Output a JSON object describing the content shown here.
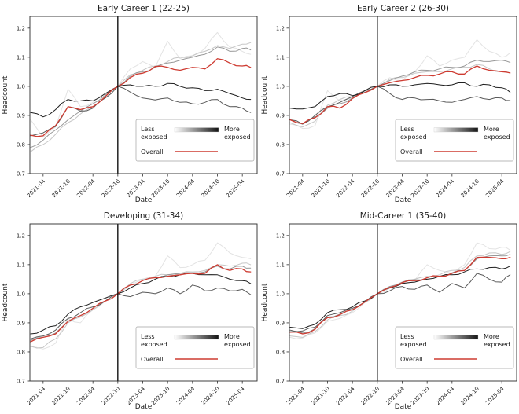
{
  "figure": {
    "background": "#ffffff",
    "event_line_color": "#000000",
    "spine_color": "#2b2b2b",
    "text_color": "#1a1a1a"
  },
  "legend": {
    "less_line1": "Less",
    "less_line2": "exposed",
    "more_line1": "More",
    "more_line2": "exposed",
    "overall_label": "Overall",
    "overall_color": "#ce3b31",
    "gradient_from": "#ffffff",
    "gradient_to": "#141414",
    "border_color": "#b8b8b8"
  },
  "chart_data": [
    {
      "type": "line",
      "title": "Early Career 1 (22-25)",
      "xlabel": "Date",
      "ylabel": "Headcount",
      "ylim": [
        0.7,
        1.24
      ],
      "yticks": [
        "0.7",
        "0.8",
        "0.9",
        "1.0",
        "1.1",
        "1.2"
      ],
      "xticks": [
        "2021-04",
        "2021-10",
        "2022-04",
        "2022-10",
        "2023-04",
        "2023-10",
        "2024-04",
        "2024-10",
        "2025-04"
      ],
      "x_start": "2021-01",
      "x_end": "2025-07",
      "event_line_x": "2022-10",
      "anchor_months": [
        "2021-01",
        "2021-04",
        "2021-07",
        "2021-10",
        "2022-01",
        "2022-04",
        "2022-07",
        "2022-10",
        "2023-01",
        "2023-04",
        "2023-07",
        "2023-10",
        "2024-01",
        "2024-04",
        "2024-07",
        "2024-10",
        "2025-01",
        "2025-04",
        "2025-06"
      ],
      "series": [
        {
          "id": "q1-least-exposed",
          "color": "#e3e3e3",
          "values": [
            0.885,
            0.825,
            0.86,
            0.99,
            0.93,
            0.945,
            0.975,
            1.0,
            1.06,
            1.085,
            1.065,
            1.155,
            1.095,
            1.105,
            1.13,
            1.185,
            1.135,
            1.12,
            1.11
          ]
        },
        {
          "id": "q2",
          "color": "#c6c6c6",
          "values": [
            0.775,
            0.8,
            0.835,
            0.875,
            0.905,
            0.93,
            0.965,
            1.0,
            1.04,
            1.055,
            1.07,
            1.085,
            1.1,
            1.105,
            1.12,
            1.14,
            1.13,
            1.145,
            1.15
          ]
        },
        {
          "id": "q3",
          "color": "#989898",
          "values": [
            0.79,
            0.815,
            0.85,
            0.885,
            0.915,
            0.94,
            0.97,
            1.0,
            1.035,
            1.05,
            1.065,
            1.08,
            1.09,
            1.1,
            1.11,
            1.135,
            1.12,
            1.13,
            1.125
          ]
        },
        {
          "id": "q4",
          "color": "#5a5a5a",
          "values": [
            0.83,
            0.84,
            0.862,
            0.93,
            0.915,
            0.925,
            0.96,
            1.0,
            0.98,
            0.96,
            0.953,
            0.96,
            0.945,
            0.94,
            0.945,
            0.955,
            0.93,
            0.925,
            0.91
          ]
        },
        {
          "id": "q5-most-exposed",
          "color": "#1f1f1f",
          "values": [
            0.91,
            0.895,
            0.92,
            0.955,
            0.95,
            0.95,
            0.975,
            1.0,
            1.005,
            1.0,
            1.0,
            1.01,
            1.0,
            0.995,
            0.985,
            0.99,
            0.975,
            0.96,
            0.955
          ]
        },
        {
          "id": "overall",
          "color": "#ce3b31",
          "values": [
            0.832,
            0.83,
            0.865,
            0.93,
            0.92,
            0.93,
            0.965,
            1.0,
            1.03,
            1.045,
            1.068,
            1.065,
            1.055,
            1.065,
            1.06,
            1.095,
            1.08,
            1.07,
            1.065
          ]
        }
      ]
    },
    {
      "type": "line",
      "title": "Early Career 2 (26-30)",
      "xlabel": "Date",
      "ylabel": "Headcount",
      "ylim": [
        0.7,
        1.24
      ],
      "yticks": [
        "0.7",
        "0.8",
        "0.9",
        "1.0",
        "1.1",
        "1.2"
      ],
      "xticks": [
        "2021-04",
        "2021-10",
        "2022-04",
        "2022-10",
        "2023-04",
        "2023-10",
        "2024-04",
        "2024-10",
        "2025-04"
      ],
      "x_start": "2021-01",
      "x_end": "2025-07",
      "event_line_x": "2022-10",
      "anchor_months": [
        "2021-01",
        "2021-04",
        "2021-07",
        "2021-10",
        "2022-01",
        "2022-04",
        "2022-07",
        "2022-10",
        "2023-01",
        "2023-04",
        "2023-07",
        "2023-10",
        "2024-01",
        "2024-04",
        "2024-07",
        "2024-10",
        "2025-01",
        "2025-04",
        "2025-06"
      ],
      "series": [
        {
          "id": "q1-least-exposed",
          "color": "#e3e3e3",
          "values": [
            0.87,
            0.855,
            0.865,
            0.985,
            0.95,
            0.96,
            0.985,
            1.0,
            1.03,
            1.02,
            1.05,
            1.105,
            1.07,
            1.09,
            1.1,
            1.16,
            1.12,
            1.1,
            1.115
          ]
        },
        {
          "id": "q2",
          "color": "#c6c6c6",
          "values": [
            0.875,
            0.86,
            0.88,
            0.935,
            0.955,
            0.965,
            0.985,
            1.0,
            1.025,
            1.03,
            1.045,
            1.05,
            1.05,
            1.06,
            1.065,
            1.075,
            1.06,
            1.05,
            1.045
          ]
        },
        {
          "id": "q3",
          "color": "#989898",
          "values": [
            0.885,
            0.87,
            0.895,
            0.925,
            0.94,
            0.96,
            0.98,
            1.0,
            1.02,
            1.035,
            1.05,
            1.055,
            1.06,
            1.065,
            1.07,
            1.09,
            1.085,
            1.09,
            1.082
          ]
        },
        {
          "id": "q4",
          "color": "#5a5a5a",
          "values": [
            0.885,
            0.87,
            0.9,
            0.93,
            0.945,
            0.965,
            0.985,
            1.0,
            0.975,
            0.955,
            0.96,
            0.955,
            0.95,
            0.945,
            0.955,
            0.965,
            0.955,
            0.96,
            0.951
          ]
        },
        {
          "id": "q5-most-exposed",
          "color": "#1f1f1f",
          "values": [
            0.925,
            0.922,
            0.93,
            0.965,
            0.975,
            0.968,
            0.985,
            1.0,
            1.005,
            1.0,
            1.005,
            1.01,
            1.005,
            1.005,
            1.012,
            1.0,
            1.005,
            0.995,
            0.98
          ]
        },
        {
          "id": "overall",
          "color": "#ce3b31",
          "values": [
            0.885,
            0.872,
            0.892,
            0.93,
            0.925,
            0.958,
            0.978,
            1.0,
            1.012,
            1.02,
            1.03,
            1.038,
            1.042,
            1.05,
            1.042,
            1.07,
            1.055,
            1.05,
            1.046
          ]
        }
      ]
    },
    {
      "type": "line",
      "title": "Developing (31-34)",
      "xlabel": "Date",
      "ylabel": "Headcount",
      "ylim": [
        0.7,
        1.24
      ],
      "yticks": [
        "0.7",
        "0.8",
        "0.9",
        "1.0",
        "1.1",
        "1.2"
      ],
      "xticks": [
        "2021-04",
        "2021-10",
        "2022-04",
        "2022-10",
        "2023-04",
        "2023-10",
        "2024-04",
        "2024-10",
        "2025-04"
      ],
      "x_start": "2021-01",
      "x_end": "2025-07",
      "event_line_x": "2022-10",
      "anchor_months": [
        "2021-01",
        "2021-04",
        "2021-07",
        "2021-10",
        "2022-01",
        "2022-04",
        "2022-07",
        "2022-10",
        "2023-01",
        "2023-04",
        "2023-07",
        "2023-10",
        "2024-01",
        "2024-04",
        "2024-07",
        "2024-10",
        "2025-01",
        "2025-04",
        "2025-06"
      ],
      "series": [
        {
          "id": "q1-least-exposed",
          "color": "#e3e3e3",
          "values": [
            0.818,
            0.81,
            0.83,
            0.915,
            0.9,
            0.945,
            0.975,
            1.0,
            1.03,
            1.05,
            1.06,
            1.13,
            1.09,
            1.1,
            1.115,
            1.175,
            1.14,
            1.125,
            1.12
          ]
        },
        {
          "id": "q2",
          "color": "#c6c6c6",
          "values": [
            0.82,
            0.815,
            0.845,
            0.9,
            0.92,
            0.945,
            0.975,
            1.0,
            1.035,
            1.05,
            1.06,
            1.065,
            1.07,
            1.075,
            1.08,
            1.1,
            1.095,
            1.105,
            1.1
          ]
        },
        {
          "id": "q3",
          "color": "#989898",
          "values": [
            0.84,
            0.85,
            0.865,
            0.905,
            0.925,
            0.95,
            0.975,
            1.0,
            1.03,
            1.045,
            1.055,
            1.065,
            1.07,
            1.072,
            1.075,
            1.095,
            1.085,
            1.095,
            1.088
          ]
        },
        {
          "id": "q4",
          "color": "#5a5a5a",
          "values": [
            0.845,
            0.855,
            0.875,
            0.915,
            0.935,
            0.955,
            0.975,
            1.0,
            0.99,
            1.005,
            1.0,
            1.02,
            1.0,
            1.03,
            1.01,
            1.02,
            1.01,
            1.015,
            0.997
          ]
        },
        {
          "id": "q5-most-exposed",
          "color": "#1f1f1f",
          "values": [
            0.862,
            0.875,
            0.89,
            0.93,
            0.955,
            0.97,
            0.985,
            1.0,
            1.02,
            1.035,
            1.05,
            1.06,
            1.065,
            1.07,
            1.065,
            1.065,
            1.05,
            1.045,
            1.035
          ]
        },
        {
          "id": "overall",
          "color": "#ce3b31",
          "values": [
            0.835,
            0.85,
            0.862,
            0.905,
            0.925,
            0.95,
            0.975,
            1.0,
            1.03,
            1.045,
            1.055,
            1.06,
            1.065,
            1.07,
            1.07,
            1.1,
            1.08,
            1.085,
            1.075
          ]
        }
      ]
    },
    {
      "type": "line",
      "title": "Mid-Career 1 (35-40)",
      "xlabel": "Date",
      "ylabel": "Headcount",
      "ylim": [
        0.7,
        1.24
      ],
      "yticks": [
        "0.7",
        "0.8",
        "0.9",
        "1.0",
        "1.1",
        "1.2"
      ],
      "xticks": [
        "2021-04",
        "2021-10",
        "2022-04",
        "2022-10",
        "2023-04",
        "2023-10",
        "2024-04",
        "2024-10",
        "2025-04"
      ],
      "x_start": "2021-01",
      "x_end": "2025-07",
      "event_line_x": "2022-10",
      "anchor_months": [
        "2021-01",
        "2021-04",
        "2021-07",
        "2021-10",
        "2022-01",
        "2022-04",
        "2022-07",
        "2022-10",
        "2023-01",
        "2023-04",
        "2023-07",
        "2023-10",
        "2024-01",
        "2024-04",
        "2024-07",
        "2024-10",
        "2025-01",
        "2025-04",
        "2025-06"
      ],
      "series": [
        {
          "id": "q1-least-exposed",
          "color": "#e3e3e3",
          "values": [
            0.85,
            0.848,
            0.865,
            0.905,
            0.915,
            0.935,
            0.97,
            1.0,
            1.02,
            1.035,
            1.045,
            1.1,
            1.08,
            1.07,
            1.1,
            1.175,
            1.155,
            1.16,
            1.15
          ]
        },
        {
          "id": "q2",
          "color": "#c6c6c6",
          "values": [
            0.855,
            0.85,
            0.87,
            0.91,
            0.925,
            0.94,
            0.97,
            1.0,
            1.025,
            1.04,
            1.05,
            1.06,
            1.065,
            1.08,
            1.09,
            1.13,
            1.14,
            1.135,
            1.145
          ]
        },
        {
          "id": "q3",
          "color": "#989898",
          "values": [
            0.87,
            0.865,
            0.88,
            0.92,
            0.93,
            0.945,
            0.972,
            1.0,
            1.025,
            1.04,
            1.048,
            1.055,
            1.06,
            1.072,
            1.08,
            1.12,
            1.13,
            1.13,
            1.135
          ]
        },
        {
          "id": "q4",
          "color": "#5a5a5a",
          "values": [
            0.875,
            0.872,
            0.885,
            0.925,
            0.935,
            0.95,
            0.972,
            1.0,
            1.01,
            1.025,
            1.015,
            1.03,
            1.005,
            1.035,
            1.02,
            1.07,
            1.05,
            1.04,
            1.065
          ]
        },
        {
          "id": "q5-most-exposed",
          "color": "#1f1f1f",
          "values": [
            0.885,
            0.88,
            0.895,
            0.935,
            0.945,
            0.955,
            0.975,
            1.0,
            1.02,
            1.035,
            1.04,
            1.05,
            1.06,
            1.065,
            1.075,
            1.085,
            1.09,
            1.085,
            1.095
          ]
        },
        {
          "id": "overall",
          "color": "#ce3b31",
          "values": [
            0.868,
            0.862,
            0.878,
            0.918,
            0.928,
            0.945,
            0.972,
            1.0,
            1.022,
            1.038,
            1.045,
            1.055,
            1.06,
            1.07,
            1.08,
            1.125,
            1.125,
            1.12,
            1.125
          ]
        }
      ]
    }
  ]
}
